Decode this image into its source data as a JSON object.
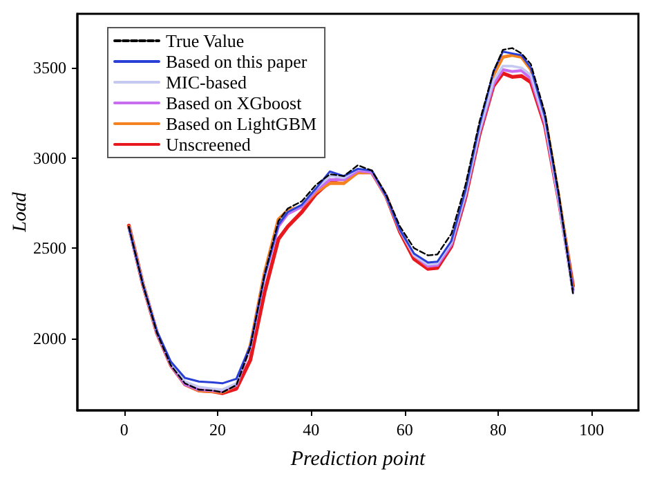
{
  "chart_data": {
    "type": "line",
    "xlabel": "Prediction point",
    "ylabel": "Load",
    "x": [
      1,
      4,
      7,
      10,
      13,
      16,
      19,
      21,
      24,
      27,
      30,
      33,
      35,
      38,
      41,
      44,
      47,
      50,
      53,
      56,
      59,
      62,
      65,
      67,
      70,
      73,
      76,
      79,
      81,
      83,
      85,
      87,
      90,
      93,
      96
    ],
    "xlim": [
      -10,
      110
    ],
    "xticks": [
      0,
      20,
      40,
      60,
      80,
      100
    ],
    "ylim": [
      1600,
      3800
    ],
    "yticks": [
      2000,
      2500,
      3000,
      3500
    ],
    "grid": false,
    "legend": "top left",
    "marker": "none",
    "series": [
      {
        "name": "True Value",
        "color": "#000000",
        "line_style": "dashed",
        "values": [
          2620,
          2300,
          2030,
          1850,
          1750,
          1715,
          1710,
          1700,
          1740,
          1950,
          2350,
          2650,
          2720,
          2760,
          2850,
          2910,
          2900,
          2960,
          2930,
          2800,
          2620,
          2500,
          2460,
          2465,
          2580,
          2850,
          3200,
          3480,
          3600,
          3610,
          3580,
          3520,
          3250,
          2800,
          2250
        ]
      },
      {
        "name": "Based on this paper",
        "color": "#2a3fd6",
        "values": [
          2615,
          2300,
          2040,
          1870,
          1780,
          1760,
          1755,
          1750,
          1775,
          1960,
          2340,
          2630,
          2700,
          2740,
          2830,
          2925,
          2900,
          2940,
          2930,
          2790,
          2600,
          2470,
          2420,
          2425,
          2540,
          2820,
          3180,
          3480,
          3590,
          3580,
          3570,
          3500,
          3230,
          2780,
          2270
        ]
      },
      {
        "name": "MIC-based",
        "color": "#c5c9f2",
        "values": [
          2610,
          2300,
          2035,
          1860,
          1760,
          1730,
          1720,
          1715,
          1750,
          1950,
          2340,
          2640,
          2700,
          2740,
          2830,
          2900,
          2890,
          2940,
          2930,
          2790,
          2600,
          2460,
          2410,
          2415,
          2530,
          2800,
          3150,
          3430,
          3510,
          3510,
          3500,
          3460,
          3200,
          2760,
          2250
        ]
      },
      {
        "name": "Based on XGboost",
        "color": "#c86cf0",
        "values": [
          2615,
          2300,
          2030,
          1850,
          1745,
          1715,
          1710,
          1705,
          1740,
          1950,
          2340,
          2620,
          2690,
          2730,
          2820,
          2880,
          2880,
          2930,
          2920,
          2790,
          2600,
          2460,
          2400,
          2405,
          2520,
          2790,
          3140,
          3410,
          3490,
          3480,
          3485,
          3440,
          3190,
          2760,
          2260
        ]
      },
      {
        "name": "Based on LightGBM",
        "color": "#f58220",
        "values": [
          2620,
          2300,
          2030,
          1850,
          1745,
          1710,
          1705,
          1700,
          1740,
          1960,
          2360,
          2660,
          2710,
          2730,
          2810,
          2860,
          2860,
          2920,
          2920,
          2790,
          2600,
          2460,
          2400,
          2410,
          2530,
          2810,
          3170,
          3460,
          3560,
          3570,
          3560,
          3490,
          3230,
          2780,
          2270
        ]
      },
      {
        "name": "Unscreened",
        "color": "#e8191e",
        "values": [
          2625,
          2300,
          2030,
          1850,
          1745,
          1710,
          1705,
          1695,
          1720,
          1880,
          2250,
          2550,
          2620,
          2700,
          2800,
          2870,
          2890,
          2920,
          2920,
          2790,
          2590,
          2440,
          2385,
          2390,
          2510,
          2780,
          3130,
          3400,
          3470,
          3450,
          3455,
          3420,
          3180,
          2760,
          2290
        ]
      }
    ]
  }
}
